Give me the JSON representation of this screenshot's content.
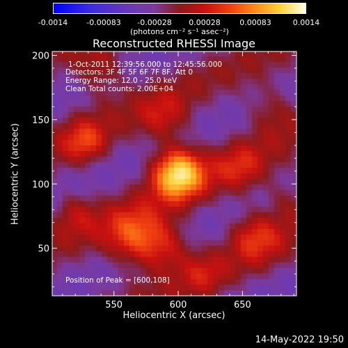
{
  "colorbar": {
    "ticks": [
      "-0.0014",
      "-0.00083",
      "-0.00028",
      "0.00028",
      "0.00083",
      "0.0014"
    ],
    "label": "(photons cm⁻² s⁻¹ asec⁻²)"
  },
  "chart_data": {
    "type": "heatmap",
    "title": "Reconstructed RHESSI Image",
    "xlabel": "Heliocentric X (arcsec)",
    "ylabel": "Heliocentric Y (arcsec)",
    "xlim": [
      502,
      692
    ],
    "ylim": [
      13,
      203
    ],
    "xticks": [
      550,
      600,
      650
    ],
    "yticks": [
      50,
      100,
      150,
      200
    ],
    "zlim": [
      -0.0014,
      0.0014
    ],
    "peak": [
      600,
      108
    ],
    "sources": [
      {
        "x": 600,
        "y": 108,
        "amp": 0.0014,
        "sigma": 14
      },
      {
        "x": 566,
        "y": 58,
        "amp": 0.0008,
        "sigma": 16
      },
      {
        "x": 590,
        "y": 52,
        "amp": 0.0006,
        "sigma": 14
      },
      {
        "x": 660,
        "y": 60,
        "amp": 0.0006,
        "sigma": 14
      },
      {
        "x": 528,
        "y": 132,
        "amp": 0.0006,
        "sigma": 12
      },
      {
        "x": 590,
        "y": 150,
        "amp": 0.00045,
        "sigma": 14
      },
      {
        "x": 648,
        "y": 112,
        "amp": 0.00045,
        "sigma": 14
      },
      {
        "x": 672,
        "y": 158,
        "amp": 0.0004,
        "sigma": 14
      },
      {
        "x": 540,
        "y": 188,
        "amp": 0.0005,
        "sigma": 14
      },
      {
        "x": 520,
        "y": 78,
        "amp": 0.0004,
        "sigma": 12
      },
      {
        "x": 685,
        "y": 88,
        "amp": 0.00035,
        "sigma": 12
      },
      {
        "x": 620,
        "y": 30,
        "amp": 0.00035,
        "sigma": 12
      }
    ],
    "annotations": [
      "1-Oct-2011 12:39:56.000 to 12:45:56.000",
      "Detectors: 3F 4F 5F 6F 7F 8F, Att 0",
      "Energy Range: 12.0 - 25.0 keV",
      "Clean     Total counts: 2.00E+04",
      "Position of Peak = [600,108]"
    ]
  },
  "timestamp": "14-May-2022 19:50"
}
